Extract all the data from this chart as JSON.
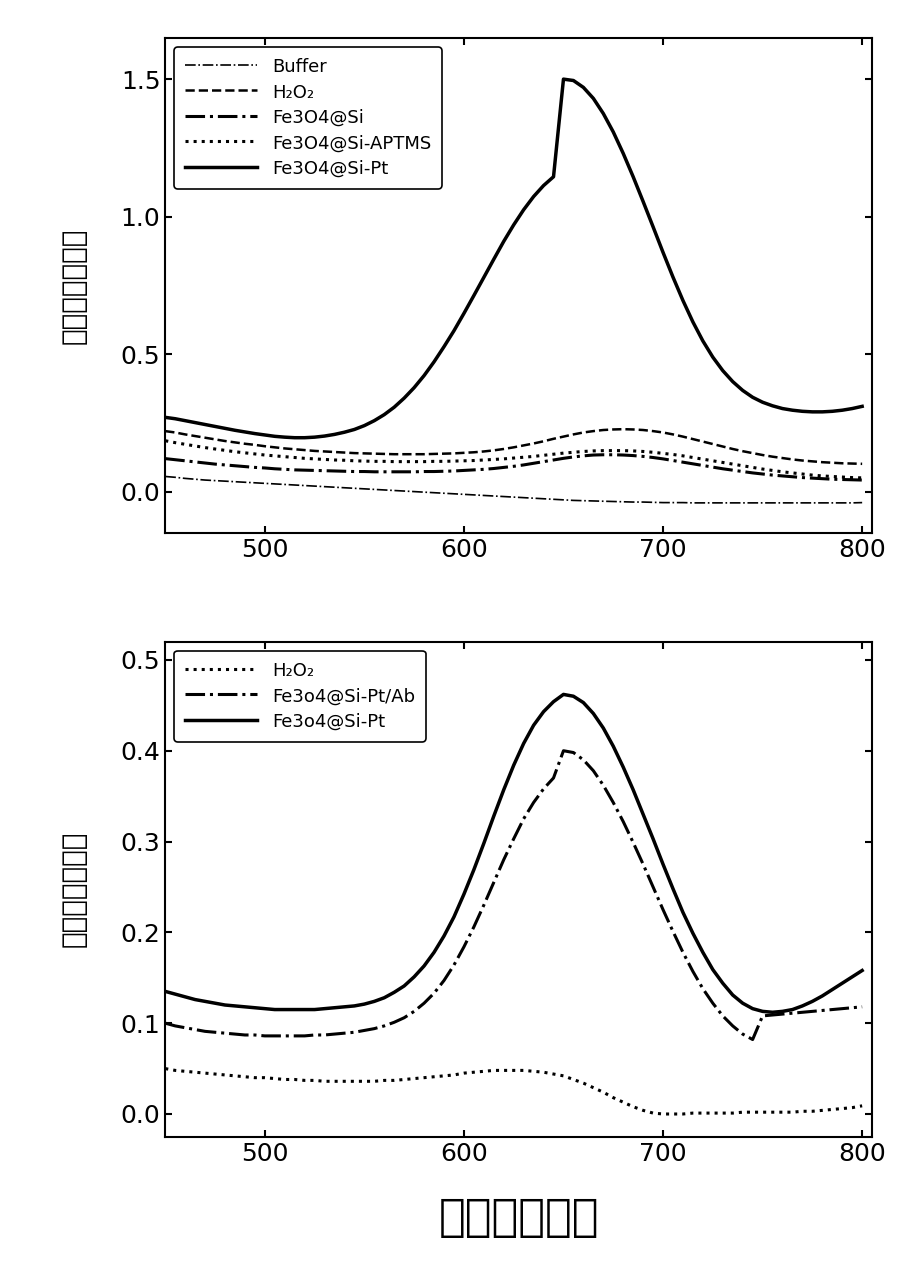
{
  "top_chart": {
    "xlim": [
      450,
      805
    ],
    "ylim": [
      -0.15,
      1.65
    ],
    "yticks": [
      0.0,
      0.5,
      1.0,
      1.5
    ],
    "xticks": [
      500,
      600,
      700,
      800
    ],
    "series": [
      {
        "label": "Buffer",
        "linestyle": "-.",
        "linewidth": 1.2,
        "x": [
          450,
          455,
          460,
          465,
          470,
          475,
          480,
          485,
          490,
          495,
          500,
          505,
          510,
          515,
          520,
          525,
          530,
          535,
          540,
          545,
          550,
          555,
          560,
          565,
          570,
          575,
          580,
          585,
          590,
          595,
          600,
          605,
          610,
          615,
          620,
          625,
          630,
          635,
          640,
          645,
          650,
          655,
          660,
          665,
          670,
          675,
          680,
          685,
          690,
          695,
          700,
          705,
          710,
          715,
          720,
          725,
          730,
          735,
          740,
          745,
          750,
          755,
          760,
          765,
          770,
          775,
          780,
          785,
          790,
          795,
          800
        ],
        "y": [
          0.055,
          0.052,
          0.048,
          0.045,
          0.042,
          0.04,
          0.038,
          0.036,
          0.034,
          0.032,
          0.03,
          0.028,
          0.026,
          0.024,
          0.022,
          0.02,
          0.018,
          0.016,
          0.014,
          0.012,
          0.01,
          0.008,
          0.006,
          0.004,
          0.002,
          0.0,
          -0.002,
          -0.004,
          -0.006,
          -0.008,
          -0.01,
          -0.012,
          -0.014,
          -0.016,
          -0.018,
          -0.02,
          -0.022,
          -0.024,
          -0.026,
          -0.028,
          -0.03,
          -0.032,
          -0.033,
          -0.034,
          -0.035,
          -0.036,
          -0.037,
          -0.038,
          -0.038,
          -0.039,
          -0.04,
          -0.04,
          -0.04,
          -0.041,
          -0.041,
          -0.041,
          -0.041,
          -0.041,
          -0.041,
          -0.041,
          -0.041,
          -0.041,
          -0.041,
          -0.041,
          -0.041,
          -0.041,
          -0.041,
          -0.041,
          -0.041,
          -0.041,
          -0.04
        ]
      },
      {
        "label": "H₂O₂",
        "linestyle": "--",
        "linewidth": 1.8,
        "x": [
          450,
          455,
          460,
          465,
          470,
          475,
          480,
          485,
          490,
          495,
          500,
          505,
          510,
          515,
          520,
          525,
          530,
          535,
          540,
          545,
          550,
          555,
          560,
          565,
          570,
          575,
          580,
          585,
          590,
          595,
          600,
          605,
          610,
          615,
          620,
          625,
          630,
          635,
          640,
          645,
          650,
          655,
          660,
          665,
          670,
          675,
          680,
          685,
          690,
          695,
          700,
          705,
          710,
          715,
          720,
          725,
          730,
          735,
          740,
          745,
          750,
          755,
          760,
          765,
          770,
          775,
          780,
          785,
          790,
          795,
          800
        ],
        "y": [
          0.22,
          0.215,
          0.208,
          0.202,
          0.196,
          0.19,
          0.184,
          0.179,
          0.174,
          0.17,
          0.165,
          0.161,
          0.157,
          0.154,
          0.151,
          0.148,
          0.146,
          0.144,
          0.142,
          0.14,
          0.139,
          0.138,
          0.137,
          0.136,
          0.136,
          0.136,
          0.136,
          0.137,
          0.138,
          0.139,
          0.141,
          0.143,
          0.146,
          0.15,
          0.155,
          0.161,
          0.168,
          0.175,
          0.183,
          0.192,
          0.2,
          0.208,
          0.215,
          0.22,
          0.224,
          0.226,
          0.227,
          0.226,
          0.224,
          0.22,
          0.215,
          0.208,
          0.2,
          0.191,
          0.182,
          0.173,
          0.164,
          0.155,
          0.147,
          0.14,
          0.133,
          0.127,
          0.122,
          0.117,
          0.113,
          0.11,
          0.107,
          0.105,
          0.103,
          0.102,
          0.101
        ]
      },
      {
        "label": "Fe3O4@Si",
        "linestyle": "-.",
        "linewidth": 2.2,
        "x": [
          450,
          455,
          460,
          465,
          470,
          475,
          480,
          485,
          490,
          495,
          500,
          505,
          510,
          515,
          520,
          525,
          530,
          535,
          540,
          545,
          550,
          555,
          560,
          565,
          570,
          575,
          580,
          585,
          590,
          595,
          600,
          605,
          610,
          615,
          620,
          625,
          630,
          635,
          640,
          645,
          650,
          655,
          660,
          665,
          670,
          675,
          680,
          685,
          690,
          695,
          700,
          705,
          710,
          715,
          720,
          725,
          730,
          735,
          740,
          745,
          750,
          755,
          760,
          765,
          770,
          775,
          780,
          785,
          790,
          795,
          800
        ],
        "y": [
          0.12,
          0.116,
          0.112,
          0.108,
          0.104,
          0.1,
          0.097,
          0.094,
          0.091,
          0.088,
          0.086,
          0.083,
          0.081,
          0.079,
          0.078,
          0.077,
          0.076,
          0.075,
          0.074,
          0.073,
          0.073,
          0.072,
          0.072,
          0.072,
          0.072,
          0.072,
          0.073,
          0.073,
          0.074,
          0.075,
          0.077,
          0.079,
          0.081,
          0.084,
          0.088,
          0.092,
          0.097,
          0.103,
          0.109,
          0.115,
          0.121,
          0.126,
          0.13,
          0.133,
          0.134,
          0.134,
          0.133,
          0.131,
          0.128,
          0.124,
          0.119,
          0.113,
          0.107,
          0.101,
          0.095,
          0.089,
          0.083,
          0.078,
          0.073,
          0.068,
          0.064,
          0.06,
          0.057,
          0.054,
          0.051,
          0.049,
          0.047,
          0.045,
          0.044,
          0.043,
          0.042
        ]
      },
      {
        "label": "Fe3O4@Si-APTMS",
        "linestyle": ":",
        "linewidth": 2.2,
        "x": [
          450,
          455,
          460,
          465,
          470,
          475,
          480,
          485,
          490,
          495,
          500,
          505,
          510,
          515,
          520,
          525,
          530,
          535,
          540,
          545,
          550,
          555,
          560,
          565,
          570,
          575,
          580,
          585,
          590,
          595,
          600,
          605,
          610,
          615,
          620,
          625,
          630,
          635,
          640,
          645,
          650,
          655,
          660,
          665,
          670,
          675,
          680,
          685,
          690,
          695,
          700,
          705,
          710,
          715,
          720,
          725,
          730,
          735,
          740,
          745,
          750,
          755,
          760,
          765,
          770,
          775,
          780,
          785,
          790,
          795,
          800
        ],
        "y": [
          0.185,
          0.178,
          0.172,
          0.166,
          0.16,
          0.155,
          0.15,
          0.145,
          0.141,
          0.137,
          0.133,
          0.13,
          0.127,
          0.124,
          0.121,
          0.119,
          0.117,
          0.115,
          0.114,
          0.112,
          0.111,
          0.11,
          0.11,
          0.109,
          0.109,
          0.109,
          0.109,
          0.11,
          0.11,
          0.111,
          0.112,
          0.113,
          0.115,
          0.117,
          0.119,
          0.122,
          0.125,
          0.128,
          0.132,
          0.136,
          0.14,
          0.143,
          0.146,
          0.148,
          0.149,
          0.149,
          0.149,
          0.148,
          0.146,
          0.143,
          0.139,
          0.135,
          0.13,
          0.124,
          0.118,
          0.112,
          0.106,
          0.1,
          0.094,
          0.088,
          0.082,
          0.077,
          0.072,
          0.068,
          0.064,
          0.06,
          0.057,
          0.055,
          0.053,
          0.051,
          0.05
        ]
      },
      {
        "label": "Fe3O4@Si-Pt",
        "linestyle": "-",
        "linewidth": 2.5,
        "x": [
          450,
          455,
          460,
          465,
          470,
          475,
          480,
          485,
          490,
          495,
          500,
          505,
          510,
          515,
          520,
          525,
          530,
          535,
          540,
          545,
          550,
          555,
          560,
          565,
          570,
          575,
          580,
          585,
          590,
          595,
          600,
          605,
          610,
          615,
          620,
          625,
          630,
          635,
          640,
          645,
          650,
          655,
          660,
          665,
          670,
          675,
          680,
          685,
          690,
          695,
          700,
          705,
          710,
          715,
          720,
          725,
          730,
          735,
          740,
          745,
          750,
          755,
          760,
          765,
          770,
          775,
          780,
          785,
          790,
          795,
          800
        ],
        "y": [
          0.27,
          0.265,
          0.258,
          0.251,
          0.244,
          0.237,
          0.23,
          0.223,
          0.217,
          0.211,
          0.206,
          0.201,
          0.198,
          0.196,
          0.196,
          0.198,
          0.202,
          0.208,
          0.216,
          0.226,
          0.24,
          0.258,
          0.28,
          0.307,
          0.34,
          0.378,
          0.422,
          0.472,
          0.527,
          0.585,
          0.648,
          0.713,
          0.779,
          0.845,
          0.91,
          0.97,
          1.025,
          1.073,
          1.113,
          1.145,
          1.5,
          1.495,
          1.47,
          1.43,
          1.375,
          1.308,
          1.23,
          1.145,
          1.055,
          0.963,
          0.87,
          0.78,
          0.695,
          0.617,
          0.548,
          0.489,
          0.44,
          0.4,
          0.368,
          0.343,
          0.325,
          0.312,
          0.302,
          0.296,
          0.292,
          0.29,
          0.29,
          0.292,
          0.296,
          0.302,
          0.31
        ]
      }
    ]
  },
  "bottom_chart": {
    "xlim": [
      450,
      805
    ],
    "ylim": [
      -0.025,
      0.52
    ],
    "yticks": [
      0.0,
      0.1,
      0.2,
      0.3,
      0.4,
      0.5
    ],
    "xticks": [
      500,
      600,
      700,
      800
    ],
    "series": [
      {
        "label": "H₂O₂",
        "linestyle": ":",
        "linewidth": 2.2,
        "x": [
          450,
          455,
          460,
          465,
          470,
          475,
          480,
          485,
          490,
          495,
          500,
          505,
          510,
          515,
          520,
          525,
          530,
          535,
          540,
          545,
          550,
          555,
          560,
          565,
          570,
          575,
          580,
          585,
          590,
          595,
          600,
          605,
          610,
          615,
          620,
          625,
          630,
          635,
          640,
          645,
          650,
          655,
          660,
          665,
          670,
          675,
          680,
          685,
          690,
          695,
          700,
          705,
          710,
          715,
          720,
          725,
          730,
          735,
          740,
          745,
          750,
          755,
          760,
          765,
          770,
          775,
          780,
          785,
          790,
          795,
          800
        ],
        "y": [
          0.05,
          0.048,
          0.047,
          0.046,
          0.045,
          0.044,
          0.043,
          0.042,
          0.041,
          0.04,
          0.04,
          0.039,
          0.038,
          0.038,
          0.037,
          0.037,
          0.036,
          0.036,
          0.036,
          0.036,
          0.036,
          0.036,
          0.037,
          0.037,
          0.038,
          0.039,
          0.04,
          0.041,
          0.042,
          0.043,
          0.045,
          0.046,
          0.047,
          0.048,
          0.048,
          0.048,
          0.048,
          0.047,
          0.046,
          0.044,
          0.042,
          0.038,
          0.034,
          0.029,
          0.024,
          0.018,
          0.013,
          0.008,
          0.004,
          0.001,
          0.0,
          0.0,
          0.0,
          0.001,
          0.001,
          0.001,
          0.001,
          0.001,
          0.002,
          0.002,
          0.002,
          0.002,
          0.002,
          0.002,
          0.003,
          0.003,
          0.004,
          0.005,
          0.006,
          0.007,
          0.009
        ]
      },
      {
        "label": "Fe3o4@Si-Pt/Ab",
        "linestyle": "-.",
        "linewidth": 2.2,
        "x": [
          450,
          455,
          460,
          465,
          470,
          475,
          480,
          485,
          490,
          495,
          500,
          505,
          510,
          515,
          520,
          525,
          530,
          535,
          540,
          545,
          550,
          555,
          560,
          565,
          570,
          575,
          580,
          585,
          590,
          595,
          600,
          605,
          610,
          615,
          620,
          625,
          630,
          635,
          640,
          645,
          650,
          655,
          660,
          665,
          670,
          675,
          680,
          685,
          690,
          695,
          700,
          705,
          710,
          715,
          720,
          725,
          730,
          735,
          740,
          745,
          750,
          755,
          760,
          765,
          770,
          775,
          780,
          785,
          790,
          795,
          800
        ],
        "y": [
          0.1,
          0.097,
          0.095,
          0.093,
          0.091,
          0.09,
          0.089,
          0.088,
          0.087,
          0.087,
          0.086,
          0.086,
          0.086,
          0.086,
          0.086,
          0.087,
          0.087,
          0.088,
          0.089,
          0.09,
          0.092,
          0.094,
          0.097,
          0.101,
          0.106,
          0.113,
          0.122,
          0.133,
          0.147,
          0.164,
          0.184,
          0.206,
          0.23,
          0.255,
          0.28,
          0.303,
          0.325,
          0.343,
          0.358,
          0.37,
          0.4,
          0.398,
          0.39,
          0.378,
          0.362,
          0.343,
          0.322,
          0.299,
          0.275,
          0.25,
          0.225,
          0.201,
          0.178,
          0.157,
          0.138,
          0.122,
          0.108,
          0.097,
          0.088,
          0.082,
          0.108,
          0.109,
          0.11,
          0.111,
          0.112,
          0.113,
          0.114,
          0.115,
          0.116,
          0.117,
          0.118
        ]
      },
      {
        "label": "Fe3o4@Si-Pt",
        "linestyle": "-",
        "linewidth": 2.5,
        "x": [
          450,
          455,
          460,
          465,
          470,
          475,
          480,
          485,
          490,
          495,
          500,
          505,
          510,
          515,
          520,
          525,
          530,
          535,
          540,
          545,
          550,
          555,
          560,
          565,
          570,
          575,
          580,
          585,
          590,
          595,
          600,
          605,
          610,
          615,
          620,
          625,
          630,
          635,
          640,
          645,
          650,
          655,
          660,
          665,
          670,
          675,
          680,
          685,
          690,
          695,
          700,
          705,
          710,
          715,
          720,
          725,
          730,
          735,
          740,
          745,
          750,
          755,
          760,
          765,
          770,
          775,
          780,
          785,
          790,
          795,
          800
        ],
        "y": [
          0.135,
          0.132,
          0.129,
          0.126,
          0.124,
          0.122,
          0.12,
          0.119,
          0.118,
          0.117,
          0.116,
          0.115,
          0.115,
          0.115,
          0.115,
          0.115,
          0.116,
          0.117,
          0.118,
          0.119,
          0.121,
          0.124,
          0.128,
          0.134,
          0.141,
          0.151,
          0.163,
          0.178,
          0.196,
          0.217,
          0.242,
          0.269,
          0.298,
          0.328,
          0.357,
          0.384,
          0.408,
          0.428,
          0.443,
          0.454,
          0.462,
          0.46,
          0.453,
          0.441,
          0.425,
          0.405,
          0.382,
          0.357,
          0.33,
          0.303,
          0.275,
          0.248,
          0.222,
          0.199,
          0.178,
          0.159,
          0.144,
          0.131,
          0.122,
          0.116,
          0.113,
          0.112,
          0.113,
          0.115,
          0.119,
          0.124,
          0.13,
          0.137,
          0.144,
          0.151,
          0.158
        ]
      }
    ]
  },
  "ylabel": "吸收（任意値）",
  "xlabel": "波长（纳米）",
  "background_color": "#ffffff"
}
